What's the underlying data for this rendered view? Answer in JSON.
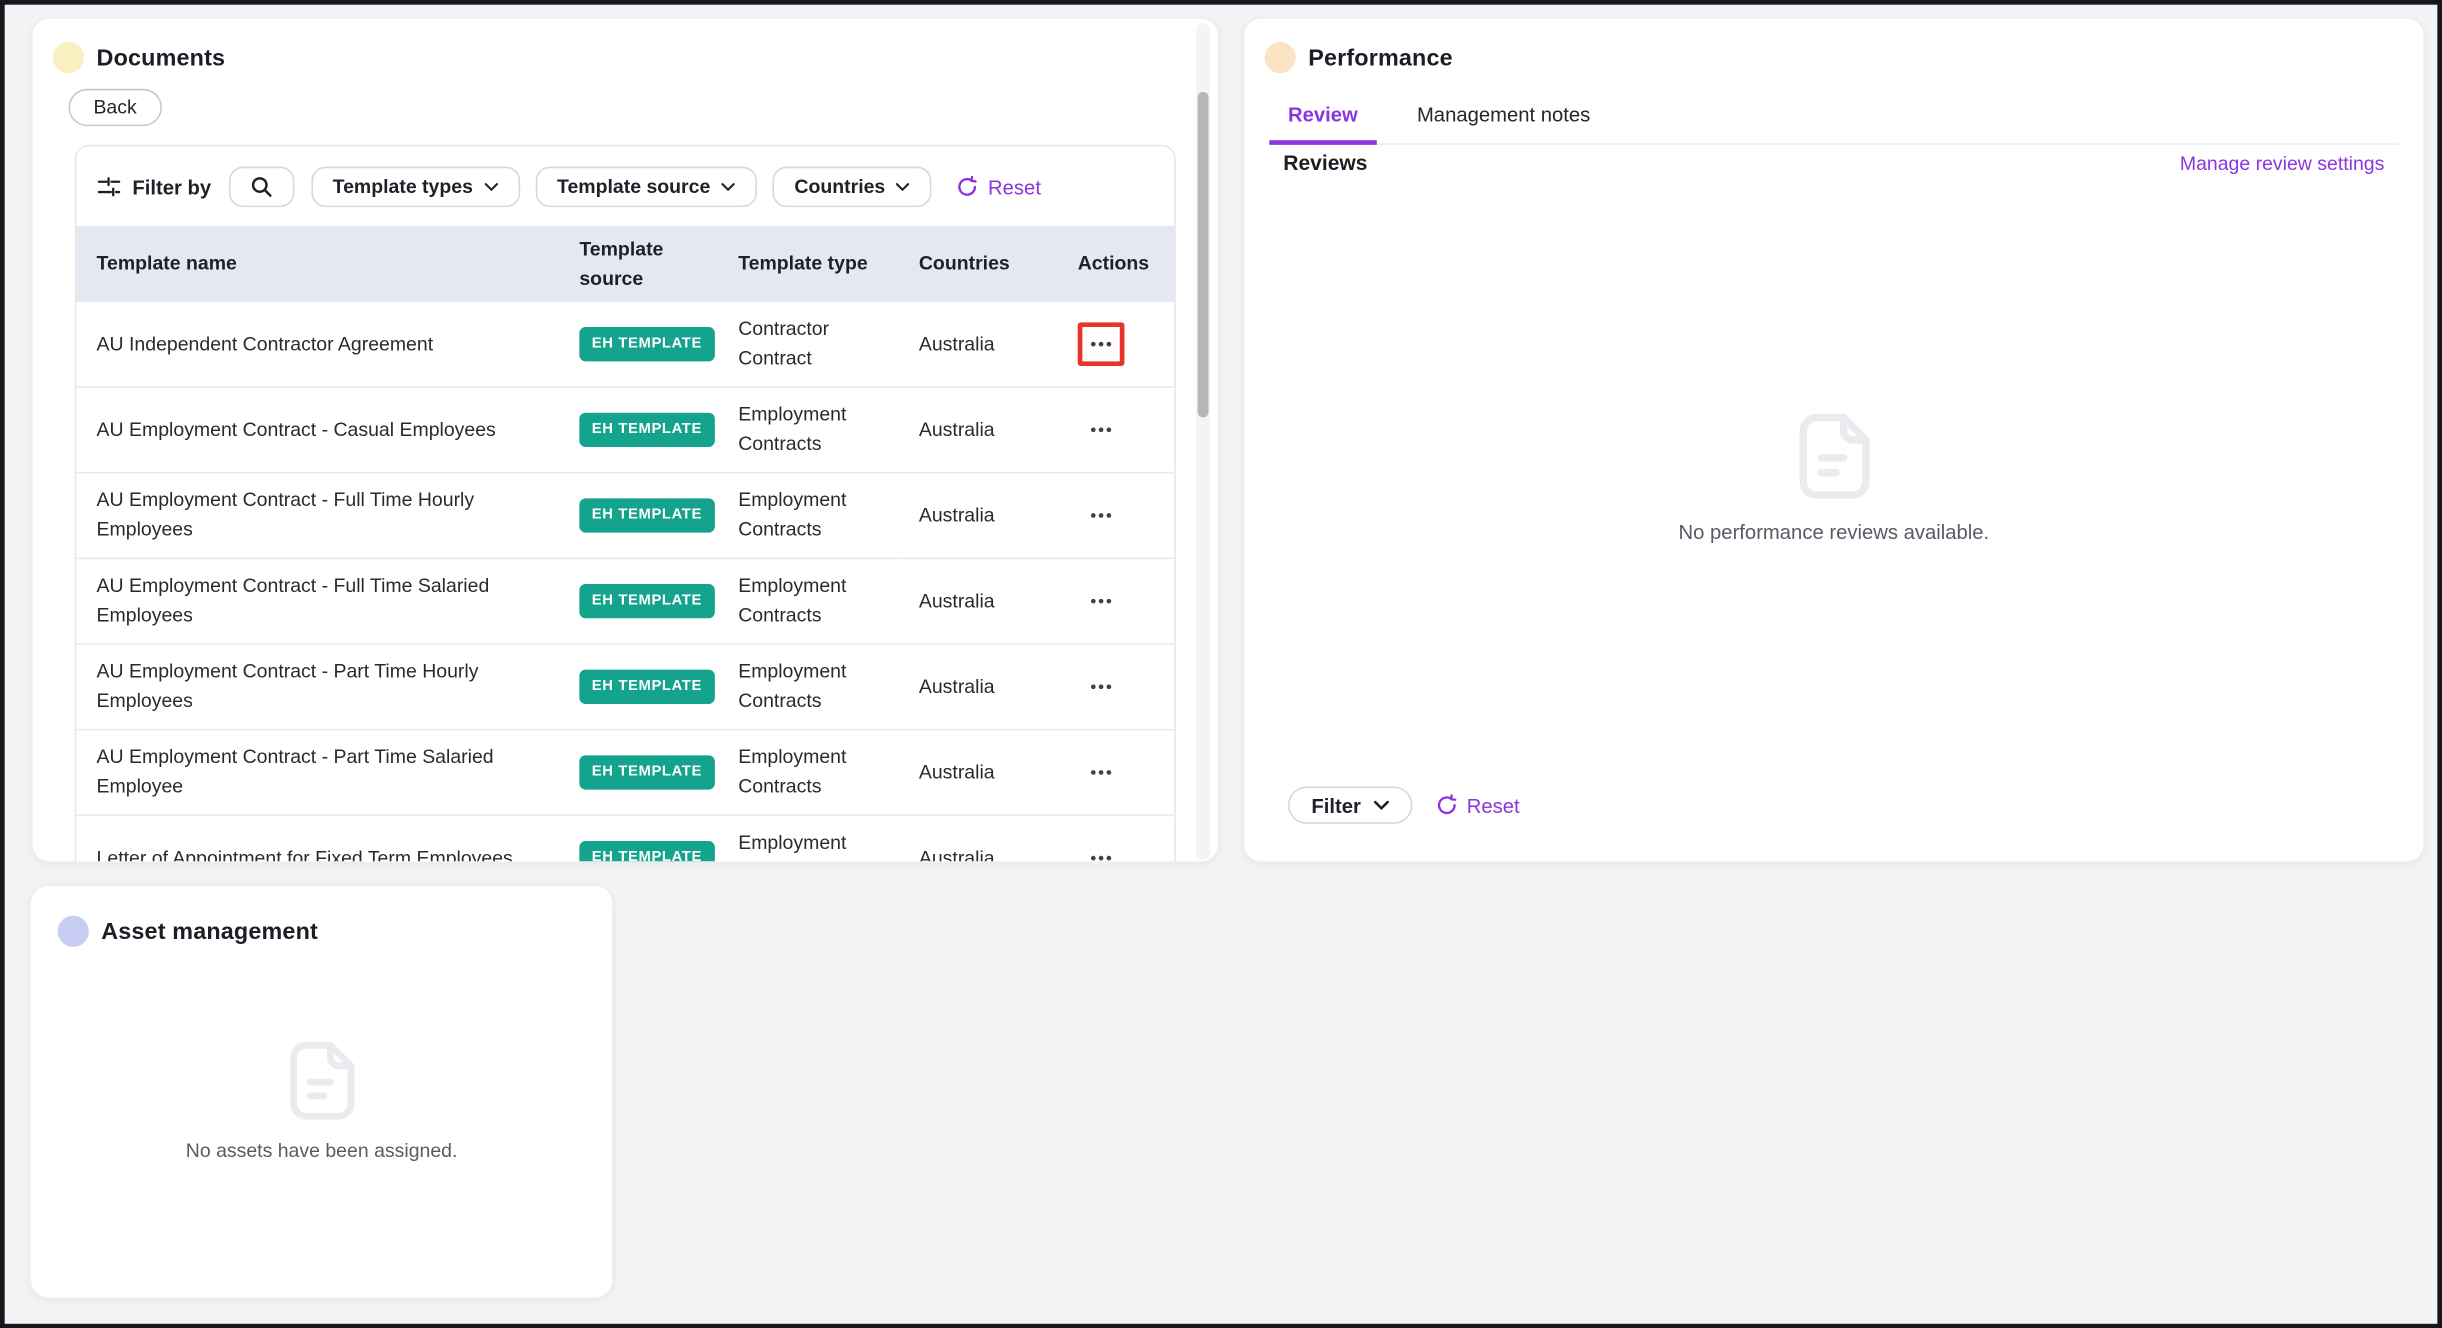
{
  "colors": {
    "accent_purple": "#8a35de",
    "badge_teal": "#14a38c",
    "highlight_red": "#e8352b",
    "table_header_bg": "#e3e8f1",
    "documents_dot": "#f9efc0",
    "performance_dot": "#fbe3c6",
    "assets_dot": "#c8cdf3"
  },
  "documents": {
    "title": "Documents",
    "back_button": "Back",
    "filter_bar": {
      "label": "Filter by",
      "dropdowns": [
        {
          "label": "Template types"
        },
        {
          "label": "Template source"
        },
        {
          "label": "Countries"
        }
      ],
      "reset": "Reset"
    },
    "table": {
      "columns": [
        "Template name",
        "Template source",
        "Template type",
        "Countries",
        "Actions"
      ],
      "rows": [
        {
          "name": "AU Independent Contractor Agreement",
          "source": "EH TEMPLATE",
          "type": "Contractor Contract",
          "countries": "Australia",
          "highlighted": true
        },
        {
          "name": "AU Employment Contract - Casual Employees",
          "source": "EH TEMPLATE",
          "type": "Employment Contracts",
          "countries": "Australia",
          "highlighted": false
        },
        {
          "name": "AU Employment Contract - Full Time Hourly Employees",
          "source": "EH TEMPLATE",
          "type": "Employment Contracts",
          "countries": "Australia",
          "highlighted": false
        },
        {
          "name": "AU Employment Contract - Full Time Salaried Employees",
          "source": "EH TEMPLATE",
          "type": "Employment Contracts",
          "countries": "Australia",
          "highlighted": false
        },
        {
          "name": "AU Employment Contract - Part Time Hourly Employees",
          "source": "EH TEMPLATE",
          "type": "Employment Contracts",
          "countries": "Australia",
          "highlighted": false
        },
        {
          "name": "AU Employment Contract - Part Time Salaried Employee",
          "source": "EH TEMPLATE",
          "type": "Employment Contracts",
          "countries": "Australia",
          "highlighted": false
        },
        {
          "name": "Letter of Appointment for Fixed Term Employees",
          "source": "EH TEMPLATE",
          "type": "Employment Contracts",
          "countries": "Australia",
          "highlighted": false
        }
      ]
    }
  },
  "performance": {
    "title": "Performance",
    "tabs": [
      {
        "label": "Review",
        "active": true
      },
      {
        "label": "Management notes",
        "active": false
      }
    ],
    "section_heading": "Reviews",
    "manage_link": "Manage review settings",
    "empty_message": "No performance reviews available.",
    "filter_button": "Filter",
    "reset": "Reset"
  },
  "assets": {
    "title": "Asset management",
    "empty_message": "No assets have been assigned."
  }
}
